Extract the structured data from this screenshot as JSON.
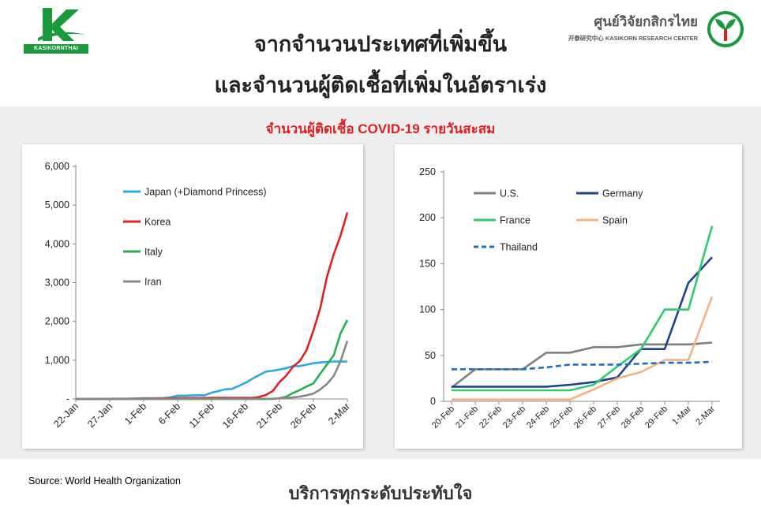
{
  "header": {
    "title_line1": "จากจำนวนประเทศที่เพิ่มขึ้น",
    "title_line2": "และจำนวนผู้ติดเชื้อที่เพิ่มในอัตราเร่ง",
    "left_logo_text": "KASIKORNTHAI",
    "right_logo_name": "ศูนย์วิจัยกสิกรไทย",
    "right_logo_sub": "开泰研究中心 KASIKORN RESEARCH CENTER",
    "brand_green": "#1a9a3c"
  },
  "subtitle": "จำนวนผู้ติดเชื้อ COVID-19 รายวันสะสม",
  "source": "Source: World Health Organization",
  "footer": "บริการทุกระดับประทับใจ",
  "chart_data": [
    {
      "type": "line",
      "title": "",
      "x": [
        "22-Jan",
        "23-Jan",
        "24-Jan",
        "25-Jan",
        "26-Jan",
        "27-Jan",
        "28-Jan",
        "29-Jan",
        "30-Jan",
        "31-Jan",
        "1-Feb",
        "2-Feb",
        "3-Feb",
        "4-Feb",
        "5-Feb",
        "6-Feb",
        "7-Feb",
        "8-Feb",
        "9-Feb",
        "10-Feb",
        "11-Feb",
        "12-Feb",
        "13-Feb",
        "14-Feb",
        "15-Feb",
        "16-Feb",
        "17-Feb",
        "18-Feb",
        "19-Feb",
        "20-Feb",
        "21-Feb",
        "22-Feb",
        "23-Feb",
        "24-Feb",
        "25-Feb",
        "26-Feb",
        "27-Feb",
        "28-Feb",
        "29-Feb",
        "1-Mar",
        "2-Mar"
      ],
      "xticks": [
        "22-Jan",
        "27-Jan",
        "1-Feb",
        "6-Feb",
        "11-Feb",
        "16-Feb",
        "21-Feb",
        "26-Feb",
        "2-Mar"
      ],
      "yticks": [
        "-",
        "1,000",
        "2,000",
        "3,000",
        "4,000",
        "5,000",
        "6,000"
      ],
      "ylim": [
        0,
        6000
      ],
      "legend_position": "top-left",
      "series": [
        {
          "name": "Japan (+Diamond  Princess)",
          "color": "#29abe2",
          "values": [
            2,
            2,
            2,
            2,
            4,
            4,
            7,
            7,
            11,
            15,
            20,
            20,
            20,
            22,
            45,
            86,
            86,
            90,
            96,
            96,
            163,
            203,
            251,
            259,
            338,
            414,
            520,
            616,
            705,
            728,
            759,
            796,
            849,
            850,
            885,
            922,
            942,
            956,
            966,
            969,
            967
          ]
        },
        {
          "name": "Korea",
          "color": "#e02020",
          "values": [
            1,
            1,
            2,
            2,
            3,
            4,
            4,
            4,
            4,
            11,
            12,
            15,
            15,
            16,
            19,
            23,
            24,
            24,
            25,
            27,
            28,
            28,
            28,
            28,
            29,
            30,
            31,
            51,
            104,
            204,
            433,
            602,
            833,
            977,
            1261,
            1766,
            2337,
            3150,
            3736,
            4212,
            4812
          ]
        },
        {
          "name": "Italy",
          "color": "#22b050",
          "values": [
            0,
            0,
            0,
            0,
            0,
            0,
            0,
            0,
            0,
            2,
            2,
            2,
            2,
            2,
            2,
            2,
            3,
            3,
            3,
            3,
            3,
            3,
            3,
            3,
            3,
            3,
            3,
            3,
            3,
            3,
            20,
            62,
            155,
            229,
            322,
            400,
            650,
            888,
            1128,
            1694,
            2036
          ]
        },
        {
          "name": "Iran",
          "color": "#888888",
          "values": [
            0,
            0,
            0,
            0,
            0,
            0,
            0,
            0,
            0,
            0,
            0,
            0,
            0,
            0,
            0,
            0,
            0,
            0,
            0,
            0,
            0,
            0,
            0,
            0,
            0,
            0,
            0,
            0,
            2,
            5,
            18,
            28,
            43,
            61,
            95,
            139,
            245,
            388,
            593,
            978,
            1501
          ]
        }
      ]
    },
    {
      "type": "line",
      "title": "",
      "x": [
        "20-Feb",
        "21-Feb",
        "22-Feb",
        "23-Feb",
        "24-Feb",
        "25-Feb",
        "26-Feb",
        "27-Feb",
        "28-Feb",
        "29-Feb",
        "1-Mar",
        "2-Mar"
      ],
      "yticks": [
        "0",
        "50",
        "100",
        "150",
        "200",
        "250"
      ],
      "ylim": [
        0,
        250
      ],
      "legend_position": "top-left",
      "series": [
        {
          "name": "U.S.",
          "color": "#7f7f7f",
          "values": [
            15,
            35,
            35,
            35,
            53,
            53,
            59,
            59,
            62,
            62,
            62,
            64
          ]
        },
        {
          "name": "Germany",
          "color": "#1f3f8f",
          "values": [
            16,
            16,
            16,
            16,
            16,
            18,
            21,
            26,
            57,
            57,
            129,
            157
          ]
        },
        {
          "name": "France",
          "color": "#2ecc71",
          "values": [
            12,
            12,
            12,
            12,
            12,
            12,
            18,
            38,
            57,
            100,
            100,
            191
          ]
        },
        {
          "name": "Spain",
          "color": "#f4b183",
          "values": [
            2,
            2,
            2,
            2,
            2,
            2,
            13,
            25,
            32,
            45,
            45,
            114
          ]
        },
        {
          "name": "Thailand",
          "color": "#1f6fc0",
          "values": [
            35,
            35,
            35,
            35,
            37,
            40,
            40,
            40,
            41,
            42,
            42,
            43
          ]
        }
      ]
    }
  ]
}
